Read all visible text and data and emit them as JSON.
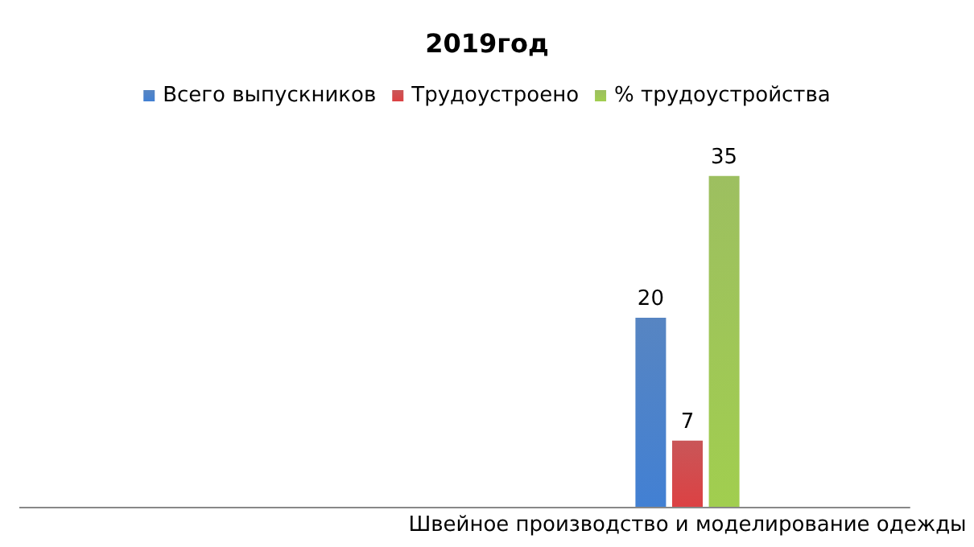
{
  "chart_data": {
    "type": "bar",
    "title": "2019год",
    "categories": [
      "Швейное производство и моделирование одежды"
    ],
    "series": [
      {
        "name": "Всего выпускников",
        "color": "#3a70b8",
        "values": [
          20
        ]
      },
      {
        "name": "Трудоустроено",
        "color": "#c0393b",
        "values": [
          7
        ]
      },
      {
        "name": "% трудоустройства",
        "color": "#8cb445",
        "values": [
          35
        ]
      }
    ],
    "data_labels": true,
    "grid": false,
    "legend": "top"
  }
}
